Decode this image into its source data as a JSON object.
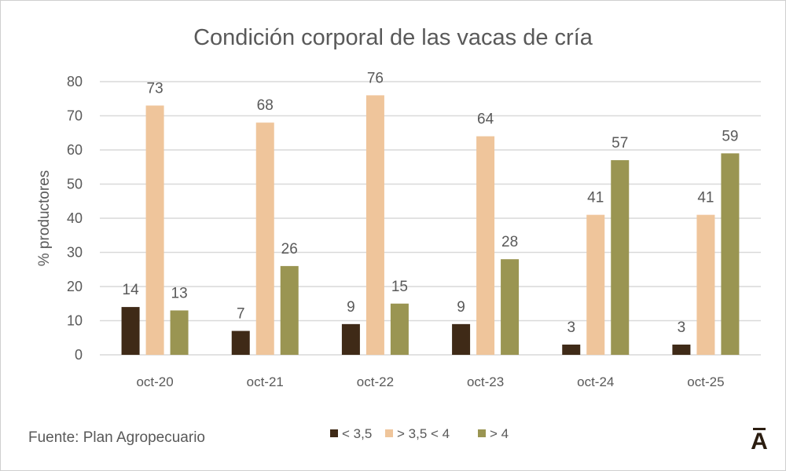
{
  "chart_data": {
    "type": "bar",
    "title": "Condición corporal de las vacas de cría",
    "xlabel": "",
    "ylabel": "% productores",
    "ylim": [
      0,
      80
    ],
    "yticks": [
      0,
      10,
      20,
      30,
      40,
      50,
      60,
      70,
      80
    ],
    "grid": true,
    "legend_position": "bottom",
    "categories": [
      "oct-20",
      "oct-21",
      "oct-22",
      "oct-23",
      "oct-24",
      "oct-25"
    ],
    "series": [
      {
        "name": "< 3,5",
        "color": "#3f2a17",
        "values": [
          14,
          7,
          9,
          9,
          3,
          3
        ]
      },
      {
        "name": "> 3,5 < 4",
        "color": "#efc59b",
        "values": [
          73,
          68,
          76,
          64,
          41,
          41
        ]
      },
      {
        "name": "> 4",
        "color": "#9a9552",
        "values": [
          13,
          26,
          15,
          28,
          57,
          59
        ]
      }
    ]
  },
  "source": "Fuente: Plan Agropecuario",
  "logo_text": "Ā"
}
